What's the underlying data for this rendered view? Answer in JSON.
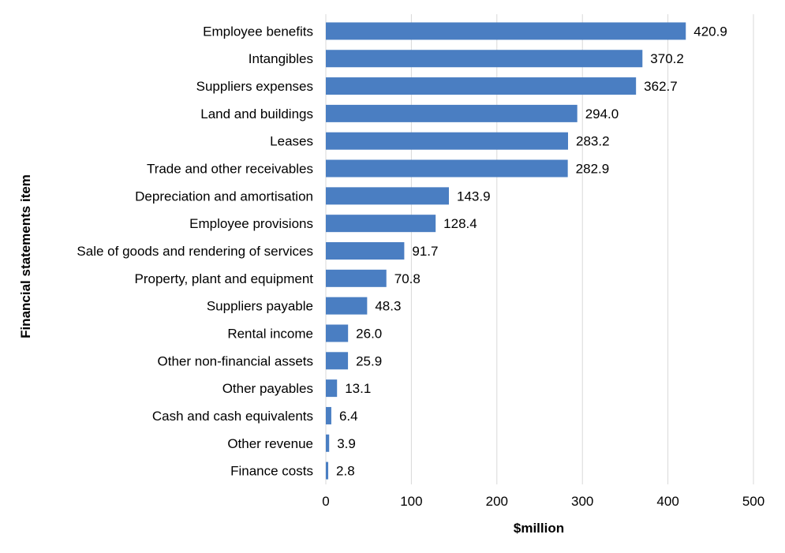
{
  "chart_data": {
    "type": "bar",
    "orientation": "horizontal",
    "categories": [
      "Employee benefits",
      "Intangibles",
      "Suppliers expenses",
      "Land and buildings",
      "Leases",
      "Trade and other receivables",
      "Depreciation and amortisation",
      "Employee provisions",
      "Sale of goods and rendering of services",
      "Property, plant and equipment",
      "Suppliers payable",
      "Rental income",
      "Other non-financial assets",
      "Other payables",
      "Cash and cash equivalents",
      "Other revenue",
      "Finance costs"
    ],
    "values": [
      420.9,
      370.2,
      362.7,
      294.0,
      283.2,
      282.9,
      143.9,
      128.4,
      91.7,
      70.8,
      48.3,
      26.0,
      25.9,
      13.1,
      6.4,
      3.9,
      2.8
    ],
    "value_labels": [
      "420.9",
      "370.2",
      "362.7",
      "294.0",
      "283.2",
      "282.9",
      "143.9",
      "128.4",
      "91.7",
      "70.8",
      "48.3",
      "26.0",
      "25.9",
      "13.1",
      "6.4",
      "3.9",
      "2.8"
    ],
    "xlabel": "$million",
    "ylabel": "Financial statements item",
    "xlim": [
      0,
      500
    ],
    "xticks": [
      0,
      100,
      200,
      300,
      400,
      500
    ],
    "xtick_labels": [
      "0",
      "100",
      "200",
      "300",
      "400",
      "500"
    ],
    "grid": "vertical",
    "bar_color": "#4A7EC2",
    "grid_color": "#D9D9D9"
  }
}
